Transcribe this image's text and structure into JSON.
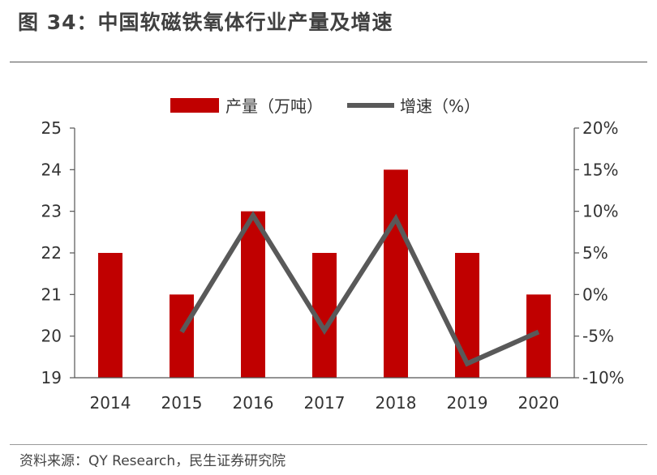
{
  "figure": {
    "title": "图 34：中国软磁铁氧体行业产量及增速",
    "source": "资料来源：QY Research，民生证券研究院"
  },
  "colors": {
    "bar": "#c00000",
    "line": "#595959",
    "axis": "#555555",
    "text": "#333333"
  },
  "chart_data": {
    "type": "bar",
    "categories": [
      "2014",
      "2015",
      "2016",
      "2017",
      "2018",
      "2019",
      "2020"
    ],
    "series": [
      {
        "name": "产量（万吨）",
        "type": "bar",
        "axis": "left",
        "values": [
          22,
          21,
          23,
          22,
          24,
          22,
          21
        ]
      },
      {
        "name": "增速（%）",
        "type": "line",
        "axis": "right",
        "values": [
          null,
          -4.5,
          9.5,
          -4.3,
          9.1,
          -8.3,
          -4.5
        ]
      }
    ],
    "y_left": {
      "lim": [
        19,
        25
      ],
      "ticks": [
        "19",
        "20",
        "21",
        "22",
        "23",
        "24",
        "25"
      ]
    },
    "y_right": {
      "lim": [
        -10,
        20
      ],
      "ticks": [
        "-10%",
        "-5%",
        "0%",
        "5%",
        "10%",
        "15%",
        "20%"
      ]
    },
    "legend": "top-center",
    "grid": false
  }
}
